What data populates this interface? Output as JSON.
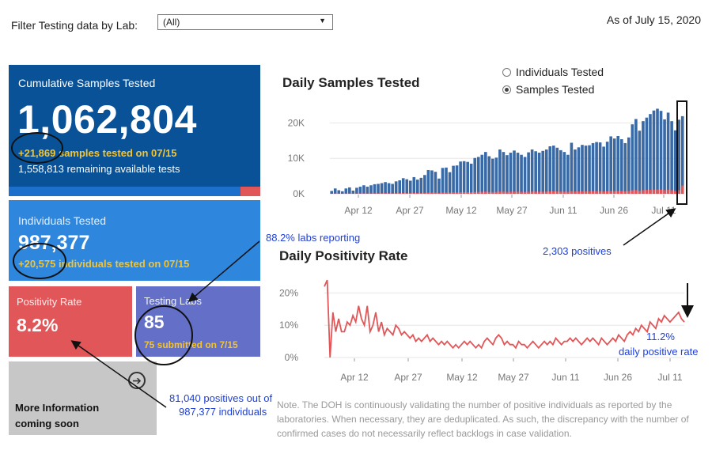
{
  "filter": {
    "label": "Filter Testing data by Lab:",
    "selected": "(All)"
  },
  "as_of": "As of July 15, 2020",
  "cards": {
    "cumulative": {
      "title": "Cumulative Samples Tested",
      "value": "1,062,804",
      "sub": "+21,869 samples tested on 07/15",
      "remaining": "1,558,813 remaining available tests",
      "used_fraction": 0.08
    },
    "individuals": {
      "title": "Individuals Tested",
      "value": "987,377",
      "sub": "+20,575 individuals  tested on 07/15"
    },
    "positivity": {
      "title": "Positivity Rate",
      "value": "8.2%"
    },
    "labs": {
      "title": "Testing Labs",
      "value": "85",
      "sub": "75 submitted on 7/15"
    },
    "more": {
      "text": "More Information coming soon"
    }
  },
  "chart_titles": {
    "daily": "Daily Samples Tested",
    "positivity": "Daily Positivity Rate"
  },
  "toggle": {
    "options": [
      "Individuals Tested",
      "Samples Tested"
    ],
    "selected": 1
  },
  "note": "Note. The DOH is continuously validating the number of positive individuals as reported by the laboratories. When necessary, they are deduplicated. As such, the discrepancy with the number of confirmed cases do not necessarily reflect backlogs in case validation.",
  "annotations": {
    "labs_reporting": "88.2% labs reporting",
    "positives": "2,303 positives",
    "rate_value": "11.2%",
    "rate_label": "daily positive rate",
    "pos_total_1": "81,040 positives out of",
    "pos_total_2": "987,377 individuals"
  },
  "colors": {
    "navy": "#0a5298",
    "blue": "#2f86dd",
    "red": "#e15759",
    "purple": "#6470c7",
    "yellow": "#f4c430",
    "bar": "#3a6aa6",
    "annotation": "#1e3fd8"
  },
  "chart_data": [
    {
      "type": "bar",
      "x_ticks": [
        "Apr 12",
        "Apr 27",
        "May 12",
        "May 27",
        "Jun 11",
        "Jun 26",
        "Jul 11"
      ],
      "y_ticks": [
        "20K",
        "10K",
        "0K"
      ],
      "ylim": [
        0,
        25000
      ],
      "series": [
        {
          "values": [
            800,
            1500,
            1000,
            700,
            1500,
            1800,
            900,
            1700,
            2000,
            2400,
            2000,
            2400,
            2700,
            2800,
            3000,
            3300,
            3000,
            2800,
            3500,
            3800,
            4400,
            4100,
            3700,
            4700,
            4000,
            4500,
            5300,
            6700,
            6600,
            6200,
            4300,
            7300,
            7400,
            6100,
            7900,
            8000,
            9100,
            9200,
            9000,
            8500,
            10100,
            10400,
            11000,
            11800,
            10600,
            9900,
            10200,
            12500,
            11800,
            10900,
            11600,
            12200,
            11600,
            11000,
            10400,
            11700,
            12500,
            12000,
            11600,
            12100,
            12500,
            13400,
            13600,
            13000,
            12300,
            11800,
            11000,
            14400,
            12500,
            13100,
            13800,
            13600,
            13700,
            14300,
            14600,
            14500,
            13300,
            14700,
            16200,
            15600,
            16300,
            15400,
            14300,
            15900,
            19600,
            21100,
            17800,
            20500,
            21500,
            22500,
            23500,
            24000,
            23400,
            21000,
            22900,
            20500,
            17900,
            20900,
            21900
          ]
        },
        {
          "values": [
            40,
            80,
            60,
            40,
            80,
            90,
            50,
            80,
            100,
            120,
            100,
            120,
            130,
            140,
            150,
            160,
            150,
            140,
            170,
            190,
            220,
            200,
            180,
            230,
            200,
            220,
            260,
            330,
            330,
            310,
            210,
            360,
            370,
            300,
            390,
            400,
            450,
            460,
            450,
            420,
            500,
            520,
            550,
            590,
            530,
            490,
            510,
            620,
            590,
            540,
            580,
            610,
            580,
            550,
            520,
            580,
            620,
            600,
            580,
            600,
            620,
            670,
            680,
            650,
            610,
            590,
            550,
            720,
            620,
            650,
            690,
            680,
            680,
            710,
            730,
            720,
            660,
            730,
            810,
            780,
            810,
            770,
            710,
            790,
            980,
            1050,
            890,
            1020,
            1070,
            1120,
            1170,
            1200,
            1170,
            1050,
            1140,
            1020,
            900,
            1040,
            2303
          ]
        }
      ]
    },
    {
      "type": "line",
      "x_ticks": [
        "Apr 12",
        "Apr 27",
        "May 12",
        "May 27",
        "Jun 11",
        "Jun 26",
        "Jul 11"
      ],
      "y_ticks": [
        "20%",
        "10%",
        "0%"
      ],
      "ylim": [
        0,
        25
      ],
      "series": [
        {
          "values": [
            22,
            24,
            0,
            14,
            8,
            12,
            8,
            8,
            11,
            10,
            13,
            11,
            16,
            12,
            10,
            16,
            8,
            10,
            14,
            8,
            11,
            7,
            9,
            8,
            7,
            10,
            9,
            7,
            8,
            7,
            6,
            7,
            5,
            6,
            5,
            6,
            7,
            5,
            6,
            5,
            4,
            5,
            4,
            5,
            4,
            3,
            4,
            3,
            4,
            5,
            4,
            5,
            4,
            3,
            4,
            3,
            5,
            6,
            5,
            4,
            6,
            7,
            6,
            4,
            5,
            4,
            4,
            3,
            5,
            4,
            4,
            3,
            4,
            5,
            4,
            3,
            4,
            5,
            4,
            5,
            4,
            6,
            5,
            4,
            5,
            5,
            6,
            5,
            6,
            5,
            4,
            5,
            6,
            5,
            6,
            5,
            4,
            6,
            5,
            4,
            5,
            6,
            5,
            7,
            6,
            5,
            7,
            8,
            7,
            9,
            8,
            10,
            9,
            8,
            11,
            10,
            9,
            12,
            11,
            13,
            12,
            11,
            12,
            13,
            14,
            12,
            11
          ]
        }
      ]
    }
  ]
}
